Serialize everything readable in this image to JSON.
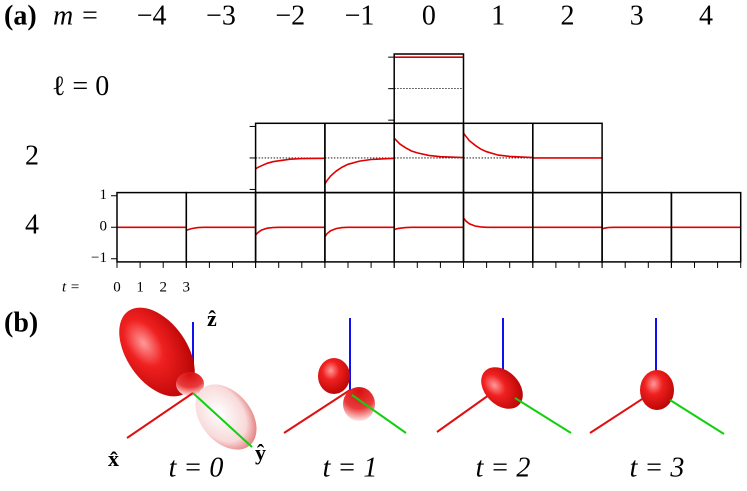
{
  "chart_data": {
    "type": "line",
    "label": "(a)",
    "column_label": "m =",
    "categories": [
      "−4",
      "−3",
      "−2",
      "−1",
      "0",
      "1",
      "2",
      "3",
      "4"
    ],
    "color": "#e00000",
    "xlabel": "t =",
    "t": [
      0,
      0.1,
      0.25,
      0.5,
      0.75,
      1,
      1.5,
      2,
      3
    ],
    "xlim": [
      0,
      3
    ],
    "xticks": [
      0,
      1,
      2,
      3
    ],
    "ylim": [
      -1.1,
      1.1
    ],
    "yticks": [
      1,
      0,
      {
        "value": -1,
        "label": "−1"
      }
    ],
    "rows": [
      {
        "label": "ℓ = 0",
        "panels": [
          null,
          null,
          null,
          null,
          [
            1,
            1,
            1,
            1,
            1,
            1,
            1,
            1,
            1
          ],
          null,
          null,
          null,
          null
        ]
      },
      {
        "label": "2",
        "panels": [
          null,
          null,
          [
            -0.35,
            -0.3,
            -0.25,
            -0.17,
            -0.12,
            -0.09,
            -0.04,
            -0.02,
            -0.01
          ],
          [
            -0.82,
            -0.71,
            -0.57,
            -0.41,
            -0.29,
            -0.2,
            -0.1,
            -0.05,
            -0.01
          ],
          [
            0.63,
            0.55,
            0.44,
            0.32,
            0.22,
            0.16,
            0.08,
            0.04,
            0.01
          ],
          [
            0.79,
            0.69,
            0.55,
            0.4,
            0.28,
            0.2,
            0.09,
            0.05,
            0.01
          ],
          [
            0,
            0,
            0,
            0,
            0,
            0,
            0,
            0,
            0
          ],
          null,
          null
        ]
      },
      {
        "label": "4",
        "panels": [
          [
            0,
            0,
            0,
            0,
            0,
            0,
            0,
            0,
            0
          ],
          [
            -0.1,
            -0.07,
            -0.04,
            -0.01,
            0,
            0,
            0,
            0,
            0
          ],
          [
            -0.25,
            -0.17,
            -0.09,
            -0.03,
            -0.01,
            0,
            0,
            0,
            0
          ],
          [
            -0.3,
            -0.2,
            -0.11,
            -0.04,
            -0.01,
            0,
            0,
            0,
            0
          ],
          [
            -0.08,
            -0.05,
            -0.03,
            -0.01,
            0,
            0,
            0,
            0,
            0
          ],
          [
            0.3,
            0.2,
            0.11,
            0.04,
            0.01,
            0,
            0,
            0,
            0
          ],
          [
            0,
            0,
            0,
            0,
            0,
            0,
            0,
            0,
            0
          ],
          [
            -0.05,
            -0.03,
            -0.01,
            0,
            0,
            0,
            0,
            0,
            0
          ],
          [
            0,
            0,
            0,
            0,
            0,
            0,
            0,
            0,
            0
          ]
        ]
      }
    ]
  },
  "panel_b": {
    "label": "(b)",
    "axes": {
      "x": "x̂",
      "y": "ŷ",
      "z": "ẑ"
    },
    "times": [
      "t = 0",
      "t = 1",
      "t = 2",
      "t = 3"
    ]
  }
}
